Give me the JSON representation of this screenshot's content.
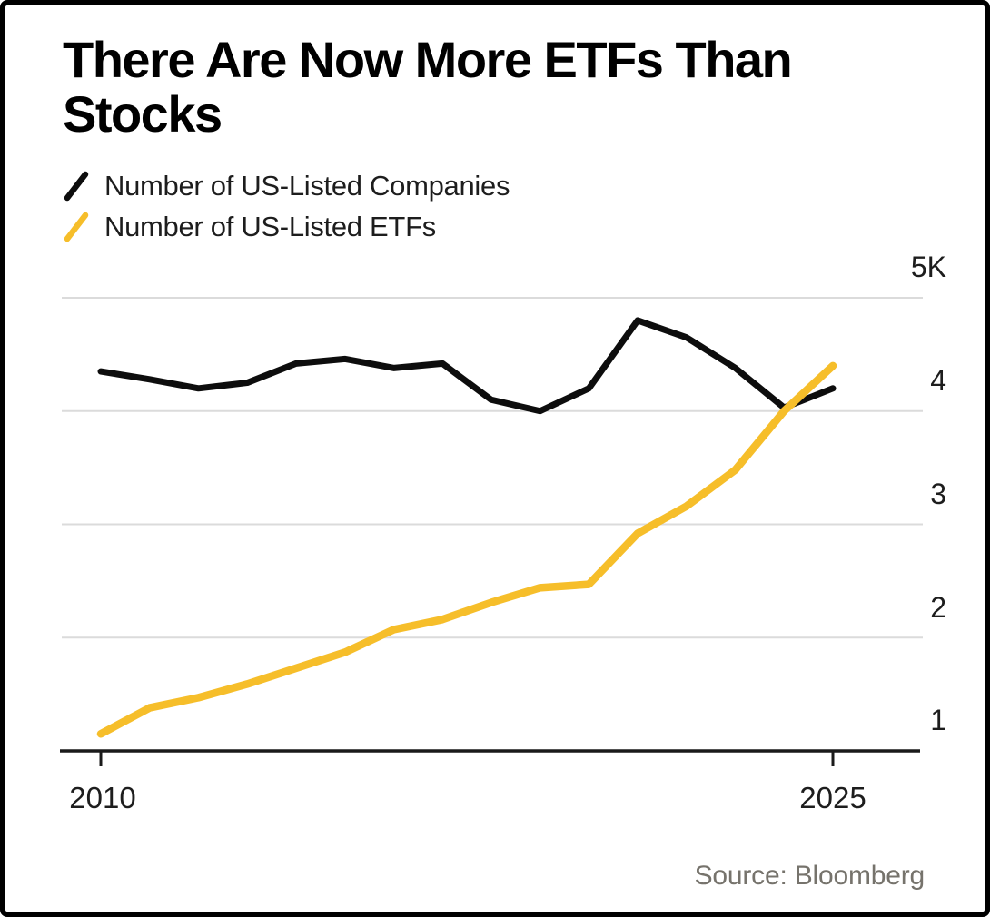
{
  "title": "There Are Now More ETFs Than Stocks",
  "legend": {
    "items": [
      {
        "label": "Number of US-Listed Companies",
        "color": "#0d0d0d"
      },
      {
        "label": "Number of US-Listed ETFs",
        "color": "#f6be2a"
      }
    ]
  },
  "source_note": "Source: Bloomberg",
  "colors": {
    "companies_line": "#0d0d0d",
    "etfs_line": "#f6be2a",
    "gridline": "#dbdbdb",
    "axis": "#1a1a1a",
    "background": "#ffffff"
  },
  "chart_data": {
    "type": "line",
    "title": "There Are Now More ETFs Than Stocks",
    "x": [
      2010,
      2011,
      2012,
      2013,
      2014,
      2015,
      2016,
      2017,
      2018,
      2019,
      2020,
      2021,
      2022,
      2023,
      2024,
      2025
    ],
    "series": [
      {
        "name": "Number of US-Listed Companies",
        "color": "#0d0d0d",
        "values": [
          4350,
          4280,
          4200,
          4250,
          4420,
          4460,
          4380,
          4420,
          4100,
          4000,
          4200,
          4800,
          4650,
          4380,
          4030,
          4200
        ]
      },
      {
        "name": "Number of US-Listed ETFs",
        "color": "#f6be2a",
        "values": [
          1150,
          1380,
          1470,
          1590,
          1730,
          1870,
          2070,
          2160,
          2310,
          2440,
          2470,
          2920,
          3160,
          3480,
          4000,
          4400
        ]
      }
    ],
    "xlabel": "",
    "ylabel": "",
    "ylim": [
      1000,
      5000
    ],
    "xlim": [
      2010,
      2025
    ],
    "grid": "horizontal-only",
    "gridline_values": [
      5000,
      4000,
      3000,
      2000
    ],
    "baseline_value": 1000,
    "legend_position": "top-left",
    "yticks": [
      {
        "label": "5K",
        "value": 5000
      },
      {
        "label": "4",
        "value": 4000
      },
      {
        "label": "3",
        "value": 3000
      },
      {
        "label": "2",
        "value": 2000
      },
      {
        "label": "1",
        "value": 1000
      }
    ],
    "xticks": [
      {
        "label": "2010",
        "value": 2010
      },
      {
        "label": "2025",
        "value": 2025
      }
    ]
  }
}
